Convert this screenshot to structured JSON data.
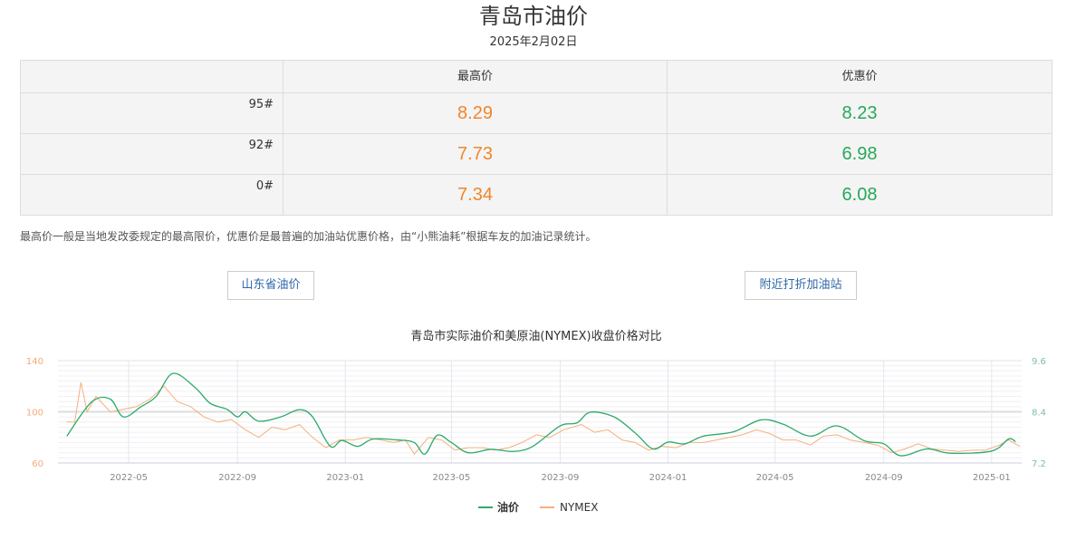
{
  "header": {
    "title": "青岛市油价",
    "date": "2025年2月02日"
  },
  "table": {
    "columns": [
      "",
      "最高价",
      "优惠价"
    ],
    "rows": [
      {
        "grade": "95#",
        "max": "8.29",
        "discount": "8.23"
      },
      {
        "grade": "92#",
        "max": "7.73",
        "discount": "6.98"
      },
      {
        "grade": "0#",
        "max": "7.34",
        "discount": "6.08"
      }
    ]
  },
  "note": "最高价一般是当地发改委规定的最高限价，优惠价是最普遍的加油站优惠价格，由“小熊油耗”根据车友的加油记录统计。",
  "buttons": {
    "province": "山东省油价",
    "nearby": "附近打折加油站"
  },
  "colors": {
    "max_price": "#f0862a",
    "discount_price": "#27a85a",
    "oil_line": "#2eaa6a",
    "nymex_line": "#f5b07c"
  },
  "chart_data": {
    "type": "line",
    "title": "青岛市实际油价和美原油(NYMEX)收盘价格对比",
    "x_ticks": [
      "2022-05",
      "2022-09",
      "2023-01",
      "2023-05",
      "2023-09",
      "2024-01",
      "2024-05",
      "2024-09",
      "2025-01"
    ],
    "y_left": {
      "range": [
        60,
        140
      ],
      "ticks": [
        "60",
        "100",
        "140"
      ]
    },
    "y_right": {
      "range": [
        7.2,
        9.6
      ],
      "ticks": [
        "7.2",
        "8.4",
        "9.6"
      ]
    },
    "grid": true,
    "legend": "bottom",
    "series": [
      {
        "name": "油价",
        "axis": "right",
        "points": [
          [
            "2022-02-20",
            7.83
          ],
          [
            "2022-03-20",
            8.63
          ],
          [
            "2022-04-10",
            8.7
          ],
          [
            "2022-04-25",
            8.28
          ],
          [
            "2022-05-15",
            8.52
          ],
          [
            "2022-06-01",
            8.76
          ],
          [
            "2022-06-20",
            9.3
          ],
          [
            "2022-07-15",
            8.97
          ],
          [
            "2022-08-01",
            8.6
          ],
          [
            "2022-08-20",
            8.46
          ],
          [
            "2022-09-01",
            8.28
          ],
          [
            "2022-09-10",
            8.4
          ],
          [
            "2022-09-25",
            8.18
          ],
          [
            "2022-10-20",
            8.28
          ],
          [
            "2022-11-10",
            8.45
          ],
          [
            "2022-11-25",
            8.28
          ],
          [
            "2022-12-15",
            7.59
          ],
          [
            "2022-12-28",
            7.73
          ],
          [
            "2023-01-15",
            7.59
          ],
          [
            "2023-02-01",
            7.76
          ],
          [
            "2023-03-01",
            7.74
          ],
          [
            "2023-03-20",
            7.68
          ],
          [
            "2023-04-01",
            7.41
          ],
          [
            "2023-04-15",
            7.85
          ],
          [
            "2023-05-01",
            7.68
          ],
          [
            "2023-05-20",
            7.44
          ],
          [
            "2023-06-15",
            7.52
          ],
          [
            "2023-07-10",
            7.47
          ],
          [
            "2023-08-01",
            7.59
          ],
          [
            "2023-09-01",
            8.07
          ],
          [
            "2023-09-20",
            8.14
          ],
          [
            "2023-10-05",
            8.39
          ],
          [
            "2023-11-01",
            8.28
          ],
          [
            "2023-11-25",
            7.9
          ],
          [
            "2023-12-15",
            7.53
          ],
          [
            "2024-01-01",
            7.69
          ],
          [
            "2024-01-20",
            7.65
          ],
          [
            "2024-02-10",
            7.83
          ],
          [
            "2024-03-15",
            7.93
          ],
          [
            "2024-04-15",
            8.21
          ],
          [
            "2024-05-10",
            8.11
          ],
          [
            "2024-06-10",
            7.83
          ],
          [
            "2024-07-10",
            8.07
          ],
          [
            "2024-08-10",
            7.72
          ],
          [
            "2024-09-01",
            7.65
          ],
          [
            "2024-09-20",
            7.37
          ],
          [
            "2024-10-20",
            7.53
          ],
          [
            "2024-11-15",
            7.43
          ],
          [
            "2025-01-01",
            7.48
          ],
          [
            "2025-01-20",
            7.76
          ],
          [
            "2025-01-28",
            7.7
          ]
        ]
      },
      {
        "name": "NYMEX",
        "axis": "left",
        "points": [
          [
            "2022-02-20",
            92
          ],
          [
            "2022-03-01",
            92
          ],
          [
            "2022-03-08",
            123
          ],
          [
            "2022-03-15",
            100
          ],
          [
            "2022-03-25",
            112
          ],
          [
            "2022-04-10",
            100
          ],
          [
            "2022-04-25",
            102
          ],
          [
            "2022-05-10",
            104
          ],
          [
            "2022-05-25",
            110
          ],
          [
            "2022-06-10",
            120
          ],
          [
            "2022-06-25",
            108
          ],
          [
            "2022-07-10",
            104
          ],
          [
            "2022-07-25",
            96
          ],
          [
            "2022-08-10",
            92
          ],
          [
            "2022-08-25",
            94
          ],
          [
            "2022-09-10",
            86
          ],
          [
            "2022-09-25",
            80
          ],
          [
            "2022-10-10",
            88
          ],
          [
            "2022-10-25",
            86
          ],
          [
            "2022-11-10",
            90
          ],
          [
            "2022-11-25",
            80
          ],
          [
            "2022-12-10",
            72
          ],
          [
            "2022-12-25",
            78
          ],
          [
            "2023-01-10",
            78
          ],
          [
            "2023-01-25",
            80
          ],
          [
            "2023-02-10",
            78
          ],
          [
            "2023-02-25",
            76
          ],
          [
            "2023-03-10",
            78
          ],
          [
            "2023-03-20",
            67
          ],
          [
            "2023-04-05",
            80
          ],
          [
            "2023-04-20",
            78
          ],
          [
            "2023-05-05",
            70
          ],
          [
            "2023-05-20",
            72
          ],
          [
            "2023-06-05",
            72
          ],
          [
            "2023-06-20",
            70
          ],
          [
            "2023-07-05",
            72
          ],
          [
            "2023-07-20",
            76
          ],
          [
            "2023-08-05",
            82
          ],
          [
            "2023-08-20",
            80
          ],
          [
            "2023-09-05",
            86
          ],
          [
            "2023-09-25",
            90
          ],
          [
            "2023-10-10",
            84
          ],
          [
            "2023-10-25",
            86
          ],
          [
            "2023-11-10",
            78
          ],
          [
            "2023-11-25",
            76
          ],
          [
            "2023-12-10",
            70
          ],
          [
            "2023-12-25",
            73
          ],
          [
            "2024-01-10",
            72
          ],
          [
            "2024-01-25",
            76
          ],
          [
            "2024-02-10",
            76
          ],
          [
            "2024-02-25",
            78
          ],
          [
            "2024-03-10",
            80
          ],
          [
            "2024-03-25",
            82
          ],
          [
            "2024-04-10",
            86
          ],
          [
            "2024-04-25",
            83
          ],
          [
            "2024-05-10",
            78
          ],
          [
            "2024-05-25",
            78
          ],
          [
            "2024-06-10",
            74
          ],
          [
            "2024-06-25",
            81
          ],
          [
            "2024-07-10",
            82
          ],
          [
            "2024-07-25",
            78
          ],
          [
            "2024-08-10",
            76
          ],
          [
            "2024-08-25",
            74
          ],
          [
            "2024-09-10",
            68
          ],
          [
            "2024-09-25",
            71
          ],
          [
            "2024-10-10",
            75
          ],
          [
            "2024-10-25",
            71
          ],
          [
            "2024-11-10",
            70
          ],
          [
            "2024-11-25",
            69
          ],
          [
            "2024-12-10",
            70
          ],
          [
            "2024-12-25",
            70
          ],
          [
            "2025-01-10",
            74
          ],
          [
            "2025-01-20",
            78
          ],
          [
            "2025-02-02",
            73
          ]
        ]
      }
    ]
  }
}
